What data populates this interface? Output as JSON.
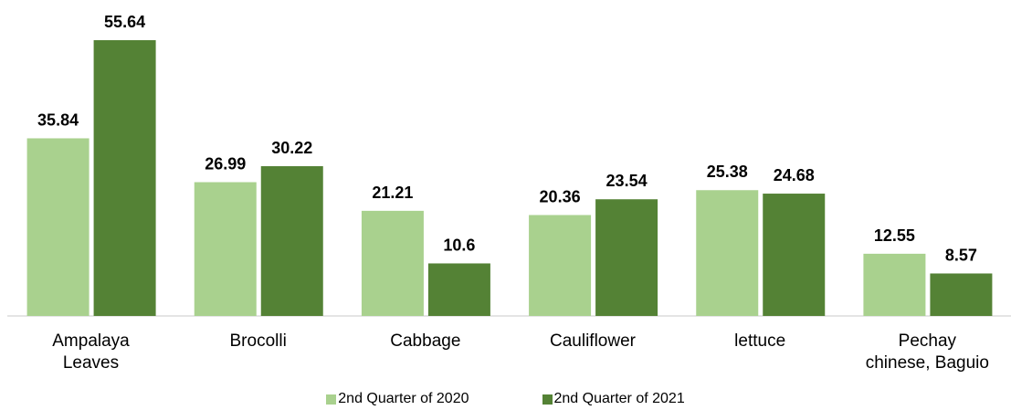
{
  "chart_data": {
    "type": "bar",
    "categories": [
      "Ampalaya\nLeaves",
      "Brocolli",
      "Cabbage",
      "Cauliflower",
      "lettuce",
      "Pechay\nchinese, Baguio"
    ],
    "series": [
      {
        "name": "2nd Quarter of 2020",
        "color": "#a9d18e",
        "values": [
          35.84,
          26.99,
          21.21,
          20.36,
          25.38,
          12.55
        ]
      },
      {
        "name": "2nd Quarter of 2021",
        "color": "#548235",
        "values": [
          55.64,
          30.22,
          10.6,
          23.54,
          24.68,
          8.57
        ]
      }
    ],
    "legend": "bottom"
  }
}
